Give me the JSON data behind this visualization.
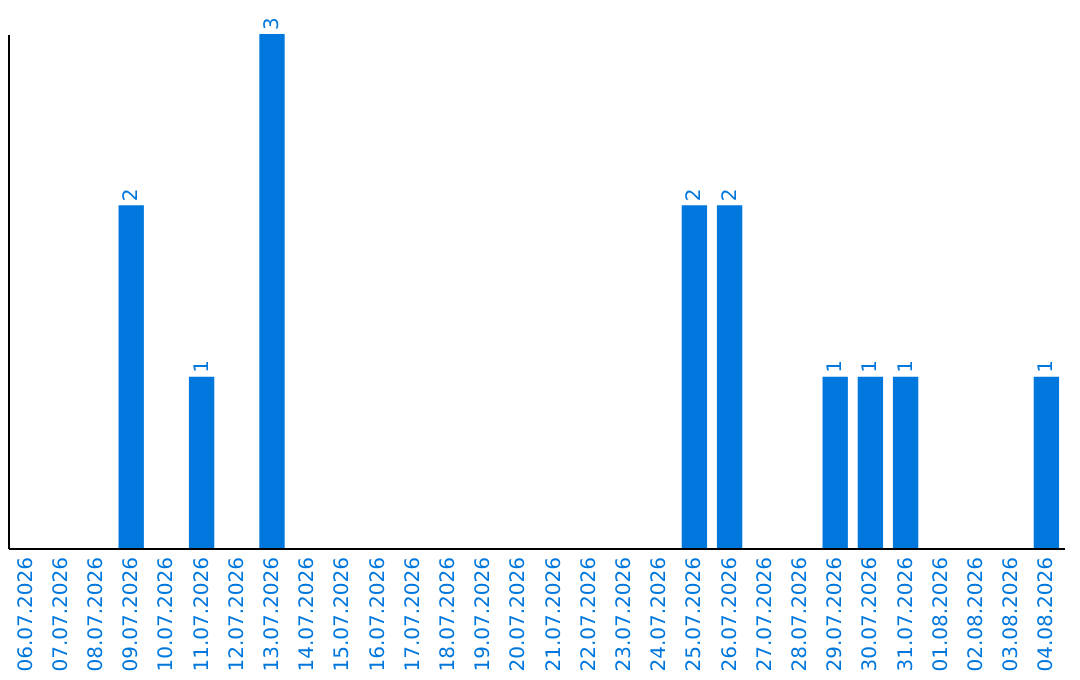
{
  "chart_data": {
    "type": "bar",
    "categories": [
      "06.07.2026",
      "07.07.2026",
      "08.07.2026",
      "09.07.2026",
      "10.07.2026",
      "11.07.2026",
      "12.07.2026",
      "13.07.2026",
      "14.07.2026",
      "15.07.2026",
      "16.07.2026",
      "17.07.2026",
      "18.07.2026",
      "19.07.2026",
      "20.07.2026",
      "21.07.2026",
      "22.07.2026",
      "23.07.2026",
      "24.07.2026",
      "25.07.2026",
      "26.07.2026",
      "27.07.2026",
      "28.07.2026",
      "29.07.2026",
      "30.07.2026",
      "31.07.2026",
      "01.08.2026",
      "02.08.2026",
      "03.08.2026",
      "04.08.2026"
    ],
    "values": [
      0,
      0,
      0,
      2,
      0,
      1,
      0,
      3,
      0,
      0,
      0,
      0,
      0,
      0,
      0,
      0,
      0,
      0,
      0,
      2,
      2,
      0,
      0,
      1,
      1,
      1,
      0,
      0,
      0,
      1
    ],
    "value_labels": [
      null,
      null,
      null,
      "2",
      null,
      "1",
      null,
      "3",
      null,
      null,
      null,
      null,
      null,
      null,
      null,
      null,
      null,
      null,
      null,
      "2",
      "2",
      null,
      null,
      "1",
      "1",
      "1",
      null,
      null,
      null,
      "1"
    ],
    "color": "#0077dd",
    "tick_labels": "x"
  }
}
